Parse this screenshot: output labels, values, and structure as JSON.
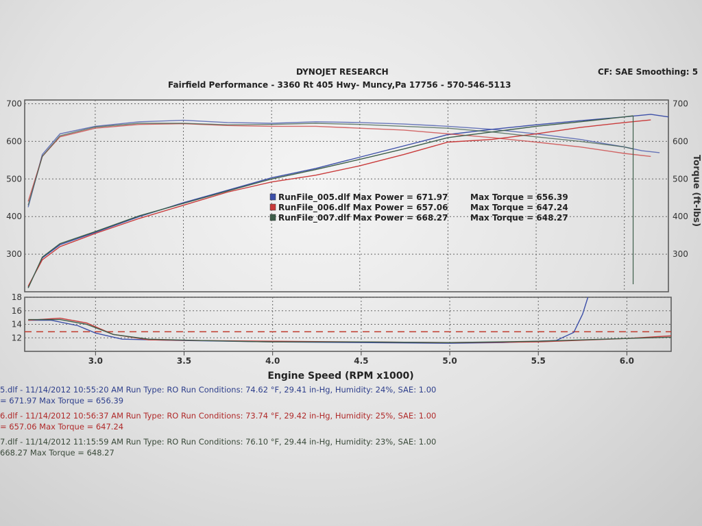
{
  "header": {
    "title": "DYNOJET RESEARCH",
    "subtitle": "Fairfield Performance - 3360 Rt 405 Hwy- Muncy,Pa 17756 - 570-546-5113",
    "settings": "CF: SAE  Smoothing: 5"
  },
  "colors": {
    "run005": "#3c4fa8",
    "run006": "#c93a3a",
    "run007": "#3d5e4a",
    "target": "#c0392b"
  },
  "legend": [
    {
      "file": "RunFile_005.dlf",
      "power": "Max Power = 671.97",
      "torque": "Max Torque = 656.39"
    },
    {
      "file": "RunFile_006.dlf",
      "power": "Max Power = 657.06",
      "torque": "Max Torque = 647.24"
    },
    {
      "file": "RunFile_007.dlf",
      "power": "Max Power = 668.27",
      "torque": "Max Torque = 648.27"
    }
  ],
  "footer": [
    {
      "line1": "5.dlf - 11/14/2012 10:55:20 AM  Run Type: RO  Run Conditions: 74.62 °F, 29.41 in-Hg,  Humidity:  24%, SAE: 1.00",
      "line2": "= 671.97  Max Torque = 656.39"
    },
    {
      "line1": "6.dlf - 11/14/2012 10:56:37 AM  Run Type: RO  Run Conditions: 73.74 °F, 29.42 in-Hg,  Humidity:  25%, SAE: 1.00",
      "line2": "= 657.06  Max Torque = 647.24"
    },
    {
      "line1": "7.dlf - 11/14/2012 11:15:59 AM  Run Type: RO  Run Conditions: 76.10 °F, 29.44 in-Hg,  Humidity:  23%, SAE: 1.00",
      "line2": "668.27  Max Torque = 648.27"
    }
  ],
  "chart_data": [
    {
      "type": "line",
      "xlabel": "Engine Speed (RPM x1000)",
      "ylabel": "",
      "y2label": "Torque (ft-lbs)",
      "xlim": [
        2.6,
        6.25
      ],
      "ylim": [
        200,
        710
      ],
      "xticks": [
        3.0,
        3.5,
        4.0,
        4.5,
        5.0,
        5.5,
        6.0
      ],
      "yticks": [
        300,
        400,
        500,
        600,
        700
      ],
      "grid": true,
      "series": [
        {
          "name": "RunFile_005.dlf",
          "kind": "power",
          "x": [
            2.62,
            2.7,
            2.8,
            3.0,
            3.25,
            3.5,
            3.75,
            4.0,
            4.25,
            4.5,
            4.75,
            5.0,
            5.25,
            5.5,
            5.75,
            6.0,
            6.15,
            6.25
          ],
          "y": [
            212,
            290,
            325,
            358,
            400,
            437,
            470,
            503,
            528,
            558,
            588,
            618,
            632,
            644,
            655,
            665,
            672,
            665
          ]
        },
        {
          "name": "RunFile_005.dlf",
          "kind": "torque",
          "x": [
            2.62,
            2.7,
            2.8,
            3.0,
            3.25,
            3.5,
            3.75,
            4.0,
            4.25,
            4.5,
            4.75,
            5.0,
            5.25,
            5.5,
            5.75,
            6.0,
            6.1,
            6.2
          ],
          "y": [
            425,
            565,
            620,
            640,
            652,
            656,
            650,
            648,
            652,
            650,
            646,
            640,
            632,
            620,
            605,
            585,
            575,
            570
          ]
        },
        {
          "name": "RunFile_006.dlf",
          "kind": "power",
          "x": [
            2.62,
            2.7,
            2.8,
            3.0,
            3.25,
            3.5,
            3.75,
            4.0,
            4.25,
            4.5,
            4.75,
            5.0,
            5.25,
            5.5,
            5.75,
            6.0,
            6.15
          ],
          "y": [
            215,
            285,
            320,
            355,
            395,
            430,
            465,
            492,
            510,
            535,
            565,
            598,
            605,
            620,
            637,
            650,
            657
          ]
        },
        {
          "name": "RunFile_006.dlf",
          "kind": "torque",
          "x": [
            2.62,
            2.7,
            2.8,
            3.0,
            3.25,
            3.5,
            3.75,
            4.0,
            4.25,
            4.5,
            4.75,
            5.0,
            5.25,
            5.5,
            5.75,
            6.0,
            6.15
          ],
          "y": [
            440,
            560,
            612,
            635,
            645,
            647,
            642,
            640,
            640,
            635,
            630,
            620,
            610,
            598,
            585,
            568,
            560
          ]
        },
        {
          "name": "RunFile_007.dlf",
          "kind": "power",
          "x": [
            2.62,
            2.7,
            2.8,
            3.0,
            3.25,
            3.5,
            3.75,
            4.0,
            4.25,
            4.5,
            4.75,
            5.0,
            5.25,
            5.5,
            5.75,
            6.0,
            6.05
          ],
          "y": [
            210,
            292,
            328,
            360,
            402,
            435,
            468,
            500,
            525,
            552,
            580,
            610,
            625,
            640,
            652,
            665,
            668
          ]
        },
        {
          "name": "RunFile_007.dlf",
          "kind": "torque",
          "x": [
            2.62,
            2.7,
            2.8,
            3.0,
            3.25,
            3.5,
            3.75,
            4.0,
            4.25,
            4.5,
            4.75,
            5.0,
            5.25,
            5.5,
            5.75,
            6.0,
            6.05
          ],
          "y": [
            430,
            560,
            615,
            638,
            648,
            648,
            644,
            645,
            648,
            645,
            640,
            635,
            625,
            612,
            600,
            585,
            580
          ]
        }
      ]
    },
    {
      "type": "line",
      "xlabel": "Engine Speed (RPM x1000)",
      "xlim": [
        2.6,
        6.25
      ],
      "ylim": [
        10,
        18
      ],
      "xticks": [
        3.0,
        3.5,
        4.0,
        4.5,
        5.0,
        5.5,
        6.0
      ],
      "yticks": [
        12,
        14,
        16,
        18
      ],
      "grid": true,
      "target": 12.9,
      "series": [
        {
          "name": "RunFile_005.dlf",
          "x": [
            2.62,
            2.75,
            2.9,
            3.0,
            3.15,
            3.5,
            4.0,
            4.5,
            5.0,
            5.3,
            5.6,
            5.7,
            5.75,
            5.78
          ],
          "y": [
            14.6,
            14.6,
            13.8,
            12.7,
            11.8,
            11.6,
            11.4,
            11.3,
            11.2,
            11.3,
            11.6,
            12.8,
            15.5,
            18
          ]
        },
        {
          "name": "RunFile_006.dlf",
          "x": [
            2.62,
            2.8,
            2.95,
            3.1,
            3.3,
            3.6,
            4.0,
            4.5,
            5.0,
            5.5,
            6.0,
            6.25
          ],
          "y": [
            14.6,
            14.9,
            14.2,
            12.5,
            11.7,
            11.6,
            11.5,
            11.4,
            11.3,
            11.4,
            11.9,
            12.3
          ]
        },
        {
          "name": "RunFile_007.dlf",
          "x": [
            2.62,
            2.8,
            2.95,
            3.1,
            3.3,
            3.6,
            4.0,
            4.5,
            5.0,
            5.5,
            6.0,
            6.25
          ],
          "y": [
            14.7,
            14.7,
            14.0,
            12.5,
            11.8,
            11.6,
            11.4,
            11.4,
            11.3,
            11.5,
            11.9,
            12.1
          ]
        }
      ]
    }
  ]
}
